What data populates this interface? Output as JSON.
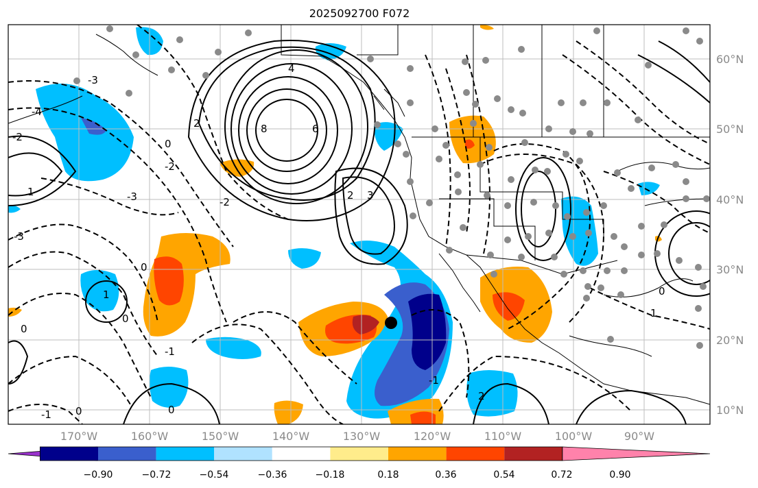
{
  "title": "2025092700 F072",
  "map": {
    "lon_labels": [
      "170°W",
      "160°W",
      "150°W",
      "140°W",
      "130°W",
      "120°W",
      "110°W",
      "100°W",
      "90°W"
    ],
    "lat_labels": [
      "60°N",
      "50°N",
      "40°N",
      "30°N",
      "20°N",
      "10°N"
    ],
    "contour_labels": [
      "-3",
      "-2",
      "-1",
      "0",
      "1",
      "2",
      "3",
      "4",
      "6",
      "8",
      "-4"
    ]
  },
  "colorbar": {
    "ticks": [
      "−0.90",
      "−0.72",
      "−0.54",
      "−0.36",
      "−0.18",
      "0.18",
      "0.36",
      "0.54",
      "0.72",
      "0.90"
    ],
    "colors": [
      "#9a32cd",
      "#00008b",
      "#3a5fcd",
      "#00bfff",
      "#b0e2ff",
      "#ffffff",
      "#ffec8b",
      "#ffa500",
      "#ff4500",
      "#b22222",
      "#ff82ab"
    ]
  },
  "colors": {
    "grid": "#bdbdbd",
    "station": "#8a8a8a",
    "contour": "#000000"
  }
}
